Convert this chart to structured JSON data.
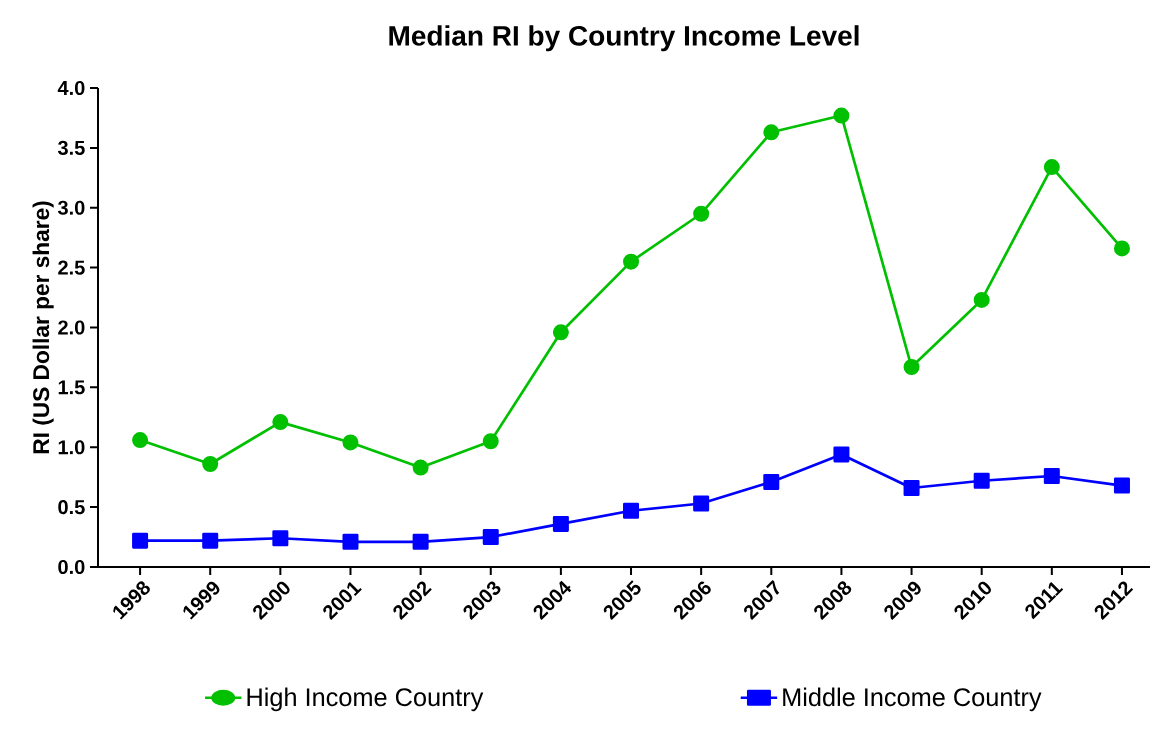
{
  "chart_data": {
    "type": "line",
    "title": "Median RI by Country Income Level",
    "ylabel": "RI (US Dollar per share)",
    "categories": [
      "1998",
      "1999",
      "2000",
      "2001",
      "2002",
      "2003",
      "2004",
      "2005",
      "2006",
      "2007",
      "2008",
      "2009",
      "2010",
      "2011",
      "2012"
    ],
    "series": [
      {
        "name": "High Income Country",
        "color": "#00c000",
        "marker": "circle",
        "values": [
          1.06,
          0.86,
          1.21,
          1.04,
          0.83,
          1.05,
          1.96,
          2.55,
          2.95,
          3.63,
          3.77,
          1.67,
          2.23,
          3.34,
          2.66
        ]
      },
      {
        "name": "Middle Income Country",
        "color": "#0000ff",
        "marker": "square",
        "values": [
          0.22,
          0.22,
          0.24,
          0.21,
          0.21,
          0.25,
          0.36,
          0.47,
          0.53,
          0.71,
          0.94,
          0.66,
          0.72,
          0.76,
          0.68
        ]
      }
    ],
    "ylim": [
      0,
      4
    ],
    "yticks": [
      {
        "value": 0,
        "label": "0.0"
      },
      {
        "value": 0.5,
        "label": "0.5"
      },
      {
        "value": 1,
        "label": "1.0"
      },
      {
        "value": 1.5,
        "label": "1.5"
      },
      {
        "value": 2,
        "label": "2.0"
      },
      {
        "value": 2.5,
        "label": "2.5"
      },
      {
        "value": 3,
        "label": "3.0"
      },
      {
        "value": 3.5,
        "label": "3.5"
      },
      {
        "value": 4,
        "label": "4.0"
      }
    ],
    "legend": "bottom"
  }
}
